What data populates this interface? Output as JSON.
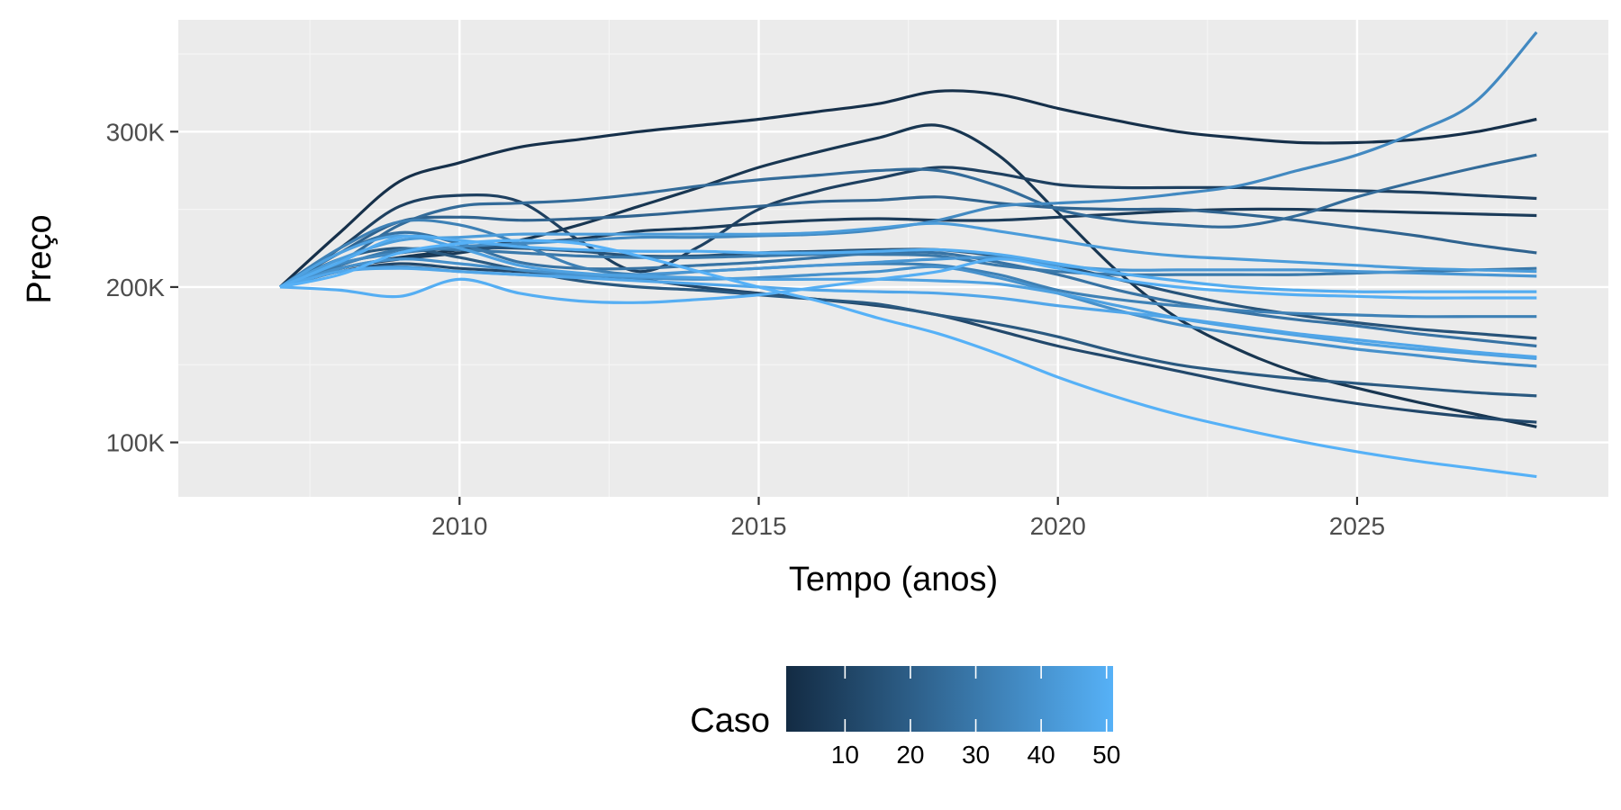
{
  "chart_data": {
    "type": "line",
    "title": "",
    "xlabel": "Tempo (anos)",
    "ylabel": "Preço",
    "xlim": [
      2005.3,
      2029.2
    ],
    "ylim": [
      65000,
      372000
    ],
    "x_ticks": [
      2010,
      2015,
      2020,
      2025
    ],
    "x_tick_labels": [
      "2010",
      "2015",
      "2020",
      "2025"
    ],
    "y_ticks": [
      100000,
      200000,
      300000
    ],
    "y_tick_labels": [
      "100K",
      "200K",
      "300K"
    ],
    "grid": true,
    "x": [
      2007,
      2008,
      2009,
      2010,
      2011,
      2012,
      2013,
      2014,
      2015,
      2016,
      2017,
      2018,
      2019,
      2020,
      2021,
      2022,
      2023,
      2024,
      2025,
      2026,
      2027,
      2028
    ],
    "series": [
      {
        "case": 3,
        "values": [
          200000,
          235000,
          268000,
          280000,
          290000,
          295000,
          300000,
          304000,
          308000,
          313000,
          318000,
          326000,
          324000,
          315000,
          307000,
          300000,
          296000,
          293000,
          293000,
          295000,
          300000,
          308000
        ]
      },
      {
        "case": 5,
        "values": [
          200000,
          212000,
          219000,
          224000,
          230000,
          240000,
          252000,
          264000,
          277000,
          287000,
          296000,
          304000,
          285000,
          248000,
          210000,
          180000,
          160000,
          145000,
          135000,
          126000,
          118000,
          110000
        ]
      },
      {
        "case": 7,
        "values": [
          200000,
          212000,
          218000,
          222000,
          228000,
          231000,
          236000,
          238000,
          241000,
          243000,
          244000,
          243000,
          243000,
          245000,
          247000,
          249000,
          250000,
          250000,
          249000,
          248000,
          247000,
          246000
        ]
      },
      {
        "case": 9,
        "values": [
          200000,
          225000,
          252000,
          259000,
          255000,
          230000,
          210000,
          226000,
          250000,
          262000,
          270000,
          277000,
          273000,
          266000,
          264000,
          264000,
          264000,
          263000,
          262000,
          261000,
          259000,
          257000
        ]
      },
      {
        "case": 12,
        "values": [
          200000,
          210000,
          215000,
          212000,
          210000,
          208000,
          205000,
          200000,
          196000,
          192000,
          188000,
          182000,
          172000,
          162000,
          154000,
          146000,
          138000,
          131000,
          125000,
          120000,
          116000,
          113000
        ]
      },
      {
        "case": 16,
        "values": [
          200000,
          215000,
          222000,
          225000,
          225000,
          223000,
          220000,
          220000,
          222000,
          223000,
          224000,
          224000,
          220000,
          214000,
          205000,
          196000,
          188000,
          182000,
          177000,
          173000,
          170000,
          167000
        ]
      },
      {
        "case": 18,
        "values": [
          200000,
          218000,
          225000,
          219000,
          211000,
          204000,
          200000,
          198000,
          195000,
          192000,
          189000,
          182000,
          176000,
          168000,
          158000,
          150000,
          145000,
          141000,
          138000,
          135000,
          132000,
          130000
        ]
      },
      {
        "case": 22,
        "values": [
          200000,
          222000,
          242000,
          245000,
          243000,
          244000,
          246000,
          249000,
          252000,
          255000,
          256000,
          258000,
          254000,
          251000,
          250000,
          250000,
          247000,
          243000,
          238000,
          233000,
          227000,
          222000
        ]
      },
      {
        "case": 25,
        "values": [
          200000,
          216000,
          240000,
          252000,
          254000,
          256000,
          260000,
          265000,
          269000,
          272000,
          275000,
          275000,
          265000,
          250000,
          243000,
          240000,
          239000,
          246000,
          258000,
          268000,
          277000,
          285000
        ]
      },
      {
        "case": 28,
        "values": [
          200000,
          222000,
          235000,
          228000,
          216000,
          212000,
          212000,
          214000,
          216000,
          219000,
          222000,
          222000,
          216000,
          208000,
          198000,
          190000,
          184000,
          179000,
          175000,
          170000,
          166000,
          162000
        ]
      },
      {
        "case": 30,
        "values": [
          200000,
          214000,
          224000,
          224000,
          222000,
          220000,
          219000,
          219000,
          220000,
          221000,
          221000,
          220000,
          214000,
          210000,
          208000,
          208000,
          208000,
          208000,
          209000,
          210000,
          211000,
          212000
        ]
      },
      {
        "case": 33,
        "values": [
          200000,
          225000,
          242000,
          240000,
          228000,
          213000,
          208000,
          210000,
          212000,
          214000,
          215000,
          214000,
          208000,
          198000,
          192000,
          188000,
          185000,
          183000,
          182000,
          181000,
          181000,
          181000
        ]
      },
      {
        "case": 36,
        "values": [
          200000,
          215000,
          222000,
          226000,
          228000,
          230000,
          232000,
          232000,
          233000,
          234000,
          237000,
          243000,
          252000,
          254000,
          256000,
          260000,
          265000,
          275000,
          285000,
          300000,
          320000,
          364000
        ]
      },
      {
        "case": 39,
        "values": [
          200000,
          212000,
          218000,
          215000,
          211000,
          208000,
          206000,
          205000,
          206000,
          208000,
          210000,
          213000,
          206000,
          196000,
          185000,
          176000,
          170000,
          165000,
          160000,
          156000,
          152000,
          149000
        ]
      },
      {
        "case": 41,
        "values": [
          200000,
          210000,
          213000,
          210000,
          208000,
          207000,
          208000,
          210000,
          212000,
          214000,
          216000,
          218000,
          219000,
          214000,
          211000,
          211000,
          211000,
          211000,
          210000,
          209000,
          208000,
          207000
        ]
      },
      {
        "case": 43,
        "values": [
          200000,
          218000,
          230000,
          232000,
          234000,
          234000,
          234000,
          234000,
          234000,
          235000,
          238000,
          241000,
          236000,
          230000,
          224000,
          220000,
          218000,
          216000,
          214000,
          212000,
          211000,
          210000
        ]
      },
      {
        "case": 45,
        "values": [
          200000,
          222000,
          233000,
          225000,
          214000,
          209000,
          207000,
          206000,
          205000,
          205000,
          205000,
          204000,
          202000,
          196000,
          188000,
          180000,
          174000,
          169000,
          164000,
          160000,
          157000,
          154000
        ]
      },
      {
        "case": 47,
        "values": [
          200000,
          210000,
          212000,
          210000,
          208000,
          206000,
          204000,
          202000,
          200000,
          198000,
          197000,
          196000,
          193000,
          188000,
          184000,
          180000,
          175000,
          170000,
          166000,
          162000,
          158000,
          155000
        ]
      },
      {
        "case": 49,
        "values": [
          200000,
          216000,
          232000,
          230000,
          226000,
          224000,
          223000,
          223000,
          222000,
          222000,
          223000,
          224000,
          221000,
          215000,
          209000,
          204000,
          200000,
          198000,
          197000,
          197000,
          197000,
          197000
        ]
      },
      {
        "case": 50,
        "values": [
          200000,
          198000,
          194000,
          205000,
          196000,
          191000,
          190000,
          192000,
          195000,
          200000,
          205000,
          210000,
          218000,
          212000,
          205000,
          200000,
          197000,
          195000,
          194000,
          193000,
          193000,
          193000
        ]
      },
      {
        "case": 51,
        "values": [
          200000,
          208000,
          222000,
          228000,
          230000,
          228000,
          220000,
          210000,
          200000,
          191000,
          180000,
          170000,
          157000,
          142000,
          129000,
          118000,
          109000,
          101000,
          94000,
          88000,
          83000,
          78000
        ]
      }
    ],
    "color_scale": {
      "title": "Caso",
      "min": 1,
      "max": 51,
      "low_color": "#132b43",
      "high_color": "#56b1f7",
      "breaks": [
        10,
        20,
        30,
        40,
        50
      ],
      "break_labels": [
        "10",
        "20",
        "30",
        "40",
        "50"
      ],
      "position": "bottom"
    },
    "colors": {
      "panel_background": "#ebebeb",
      "grid_major": "#ffffff",
      "grid_minor": "#f5f5f5",
      "tick_mark": "#333333"
    }
  }
}
